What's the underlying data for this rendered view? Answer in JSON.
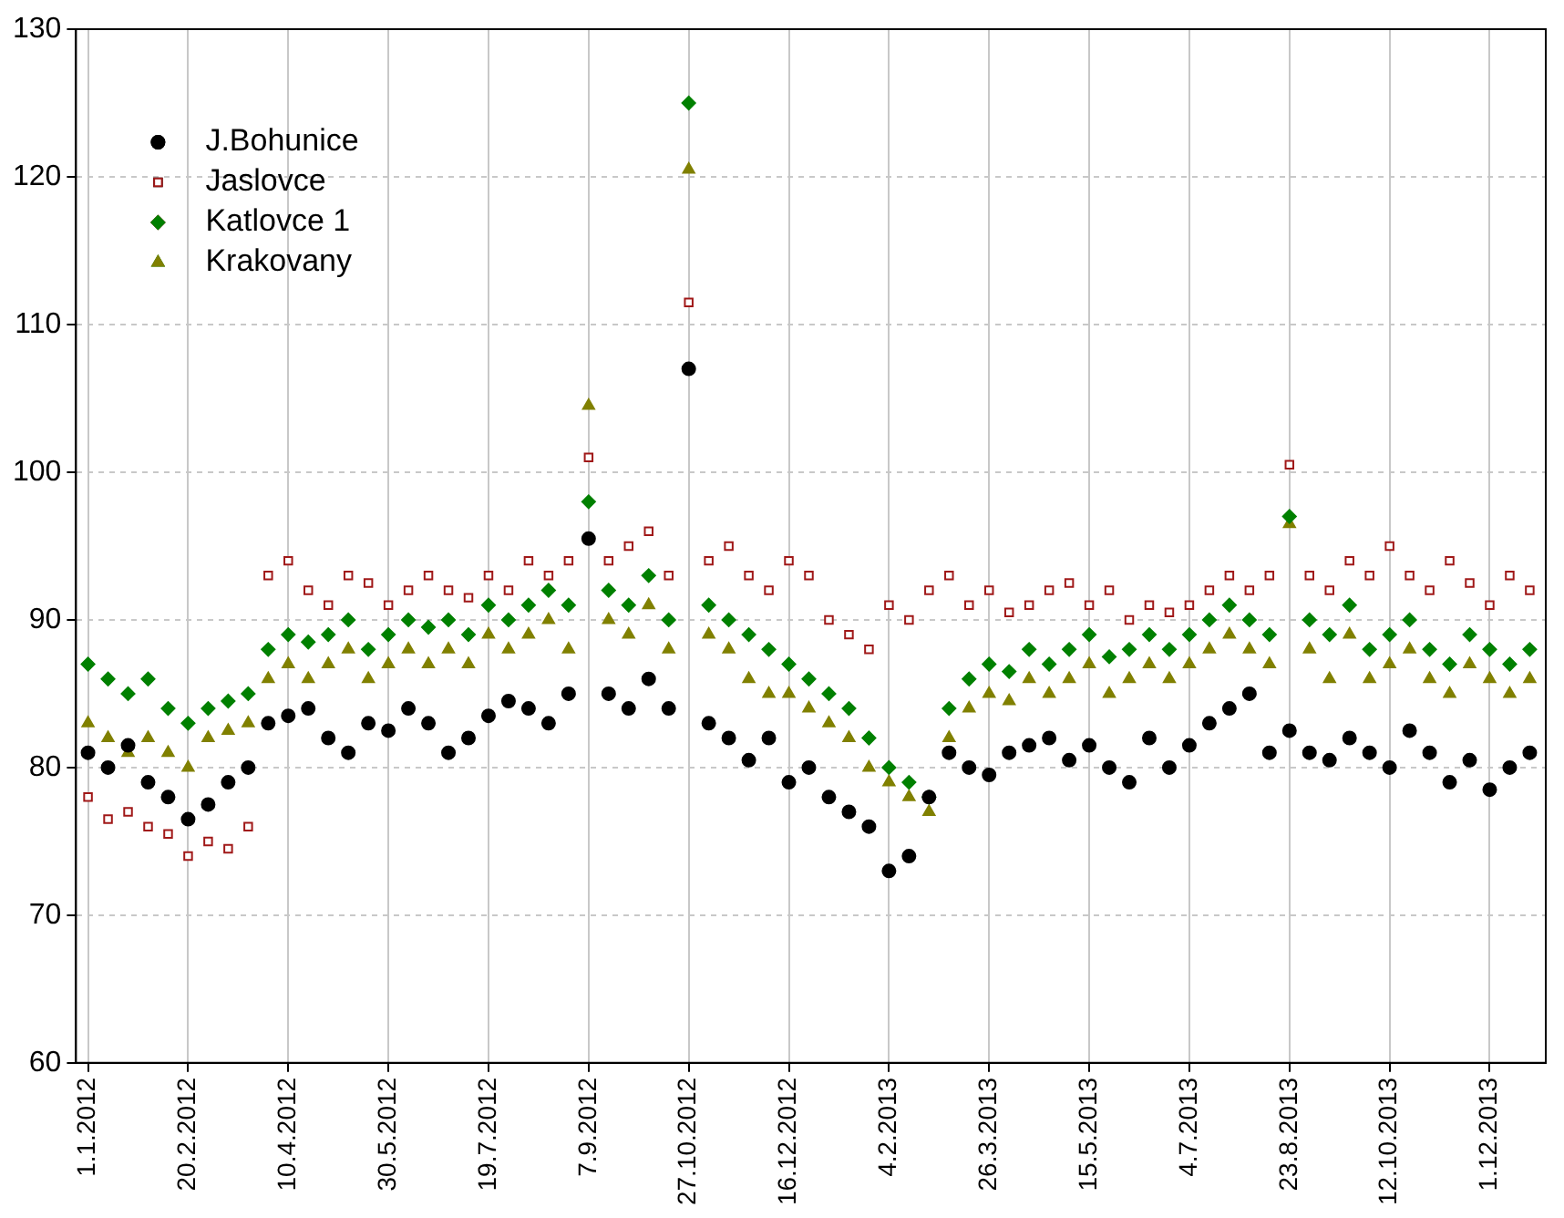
{
  "chart_data": {
    "type": "scatter",
    "legend": "top left",
    "grid": true,
    "x": [
      "2012-01-01",
      "2012-01-11",
      "2012-01-21",
      "2012-01-31",
      "2012-02-10",
      "2012-02-20",
      "2012-03-01",
      "2012-03-11",
      "2012-03-21",
      "2012-03-31",
      "2012-04-10",
      "2012-04-20",
      "2012-04-30",
      "2012-05-10",
      "2012-05-20",
      "2012-05-30",
      "2012-06-09",
      "2012-06-19",
      "2012-06-29",
      "2012-07-09",
      "2012-07-19",
      "2012-07-29",
      "2012-08-08",
      "2012-08-18",
      "2012-08-28",
      "2012-09-07",
      "2012-09-17",
      "2012-09-27",
      "2012-10-07",
      "2012-10-17",
      "2012-10-27",
      "2012-11-06",
      "2012-11-16",
      "2012-11-26",
      "2012-12-06",
      "2012-12-16",
      "2012-12-26",
      "2013-01-05",
      "2013-01-15",
      "2013-01-25",
      "2013-02-04",
      "2013-02-14",
      "2013-02-24",
      "2013-03-06",
      "2013-03-16",
      "2013-03-26",
      "2013-04-05",
      "2013-04-15",
      "2013-04-25",
      "2013-05-05",
      "2013-05-15",
      "2013-05-25",
      "2013-06-04",
      "2013-06-14",
      "2013-06-24",
      "2013-07-04",
      "2013-07-14",
      "2013-07-24",
      "2013-08-03",
      "2013-08-13",
      "2013-08-23",
      "2013-09-02",
      "2013-09-12",
      "2013-09-22",
      "2013-10-02",
      "2013-10-12",
      "2013-10-22",
      "2013-11-01",
      "2013-11-11",
      "2013-11-21",
      "2013-12-01",
      "2013-12-11",
      "2013-12-21"
    ],
    "xlim": [
      "2011-12-26",
      "2013-12-29"
    ],
    "xticks": [
      {
        "value": "2012-01-01",
        "label": "1.1.2012"
      },
      {
        "value": "2012-02-20",
        "label": "20.2.2012"
      },
      {
        "value": "2012-04-10",
        "label": "10.4.2012"
      },
      {
        "value": "2012-05-30",
        "label": "30.5.2012"
      },
      {
        "value": "2012-07-19",
        "label": "19.7.2012"
      },
      {
        "value": "2012-09-07",
        "label": "7.9.2012"
      },
      {
        "value": "2012-10-27",
        "label": "27.10.2012"
      },
      {
        "value": "2012-12-16",
        "label": "16.12.2012"
      },
      {
        "value": "2013-02-04",
        "label": "4.2.2013"
      },
      {
        "value": "2013-03-26",
        "label": "26.3.2013"
      },
      {
        "value": "2013-05-15",
        "label": "15.5.2013"
      },
      {
        "value": "2013-07-04",
        "label": "4.7.2013"
      },
      {
        "value": "2013-08-23",
        "label": "23.8.2013"
      },
      {
        "value": "2013-10-12",
        "label": "12.10.2013"
      },
      {
        "value": "2013-12-01",
        "label": "1.12.2013"
      }
    ],
    "ylim": [
      60,
      130
    ],
    "yticks": [
      60,
      70,
      80,
      90,
      100,
      110,
      120,
      130
    ],
    "series": [
      {
        "name": "J.Bohunice",
        "color": "#000000",
        "marker": "circle",
        "values": [
          81,
          80,
          81.5,
          79,
          78,
          76.5,
          77.5,
          79,
          80,
          83,
          83.5,
          84,
          82,
          81,
          83,
          82.5,
          84,
          83,
          81,
          82,
          83.5,
          84.5,
          84,
          83,
          85,
          95.5,
          85,
          84,
          86,
          84,
          107,
          83,
          82,
          80.5,
          82,
          79,
          80,
          78,
          77,
          76,
          73,
          74,
          78,
          81,
          80,
          79.5,
          81,
          81.5,
          82,
          80.5,
          81.5,
          80,
          79,
          82,
          80,
          81.5,
          83,
          84,
          85,
          81,
          82.5,
          81,
          80.5,
          82,
          81,
          80,
          82.5,
          81,
          79,
          80.5,
          78.5,
          80,
          81
        ]
      },
      {
        "name": "Jaslovce",
        "color": "#a01818",
        "marker": "square",
        "values": [
          78,
          76.5,
          77,
          76,
          75.5,
          74,
          75,
          74.5,
          76,
          93,
          94,
          92,
          91,
          93,
          92.5,
          91,
          92,
          93,
          92,
          91.5,
          93,
          92,
          94,
          93,
          94,
          101,
          94,
          95,
          96,
          93,
          111.5,
          94,
          95,
          93,
          92,
          94,
          93,
          90,
          89,
          88,
          91,
          90,
          92,
          93,
          91,
          92,
          90.5,
          91,
          92,
          92.5,
          91,
          92,
          90,
          91,
          90.5,
          91,
          92,
          93,
          92,
          93,
          100.5,
          93,
          92,
          94,
          93,
          95,
          93,
          92,
          94,
          92.5,
          91,
          93,
          92
        ]
      },
      {
        "name": "Katlovce 1",
        "color": "#008000",
        "marker": "diamond",
        "values": [
          87,
          86,
          85,
          86,
          84,
          83,
          84,
          84.5,
          85,
          88,
          89,
          88.5,
          89,
          90,
          88,
          89,
          90,
          89.5,
          90,
          89,
          91,
          90,
          91,
          92,
          91,
          98,
          92,
          91,
          93,
          90,
          125,
          91,
          90,
          89,
          88,
          87,
          86,
          85,
          84,
          82,
          80,
          79,
          78,
          84,
          86,
          87,
          86.5,
          88,
          87,
          88,
          89,
          87.5,
          88,
          89,
          88,
          89,
          90,
          91,
          90,
          89,
          97,
          90,
          89,
          91,
          88,
          89,
          90,
          88,
          87,
          89,
          88,
          87,
          88
        ]
      },
      {
        "name": "Krakovany",
        "color": "#808000",
        "marker": "triangle",
        "values": [
          83,
          82,
          81,
          82,
          81,
          80,
          82,
          82.5,
          83,
          86,
          87,
          86,
          87,
          88,
          86,
          87,
          88,
          87,
          88,
          87,
          89,
          88,
          89,
          90,
          88,
          104.5,
          90,
          89,
          91,
          88,
          120.5,
          89,
          88,
          86,
          85,
          85,
          84,
          83,
          82,
          80,
          79,
          78,
          77,
          82,
          84,
          85,
          84.5,
          86,
          85,
          86,
          87,
          85,
          86,
          87,
          86,
          87,
          88,
          89,
          88,
          87,
          96.5,
          88,
          86,
          89,
          86,
          87,
          88,
          86,
          85,
          87,
          86,
          85,
          86
        ]
      }
    ]
  }
}
